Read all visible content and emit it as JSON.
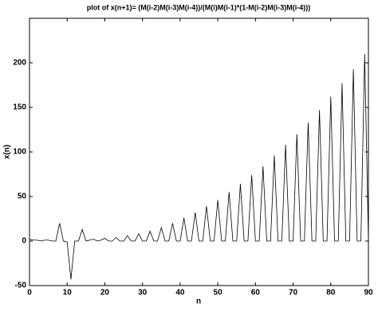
{
  "chart_data": {
    "type": "line",
    "title": "plot of x(n+1)= (M(i-2)M(i-3)M(i-4))/(M(i)M(i-1)*(1-M(i-2)M(i-3)M(i-4)))",
    "x_label": "n",
    "y_label": "x(n)",
    "x": [
      0,
      1,
      2,
      3,
      4,
      5,
      6,
      7,
      8,
      9,
      10,
      11,
      12,
      13,
      14,
      15,
      16,
      17,
      18,
      19,
      20,
      21,
      22,
      23,
      24,
      25,
      26,
      27,
      28,
      29,
      30,
      31,
      32,
      33,
      34,
      35,
      36,
      37,
      38,
      39,
      40,
      41,
      42,
      43,
      44,
      45,
      46,
      47,
      48,
      49,
      50,
      51,
      52,
      53,
      54,
      55,
      56,
      57,
      58,
      59,
      60,
      61,
      62,
      63,
      64,
      65,
      66,
      67,
      68,
      69,
      70,
      71,
      72,
      73,
      74,
      75,
      76,
      77,
      78,
      79,
      80,
      81,
      82,
      83,
      84,
      85,
      86,
      87,
      88,
      89,
      90
    ],
    "series": [
      {
        "name": "x(n)",
        "color": "#000000",
        "values": [
          2,
          1,
          1,
          0,
          1,
          1,
          0,
          0,
          20,
          0,
          -1,
          -43,
          0,
          0,
          13,
          0,
          1,
          2,
          0,
          1,
          3,
          0,
          0,
          4,
          0,
          0,
          6,
          0,
          0,
          8,
          0,
          0,
          11,
          0,
          0,
          15,
          0,
          0,
          20,
          0,
          0,
          26,
          0,
          0,
          32,
          0,
          0,
          39,
          0,
          0,
          46,
          0,
          0,
          55,
          0,
          0,
          64,
          0,
          0,
          74,
          0,
          0,
          84,
          0,
          0,
          96,
          0,
          0,
          108,
          0,
          0,
          120,
          0,
          0,
          133,
          0,
          0,
          147,
          0,
          0,
          162,
          0,
          0,
          177,
          0,
          0,
          193,
          0,
          0,
          210,
          0
        ]
      }
    ],
    "xlim": [
      0,
      90
    ],
    "xticks": [
      0,
      10,
      20,
      30,
      40,
      50,
      60,
      70,
      80,
      90
    ],
    "ylim": [
      -50,
      250
    ],
    "yticks": [
      -50,
      0,
      50,
      100,
      150,
      200
    ]
  }
}
